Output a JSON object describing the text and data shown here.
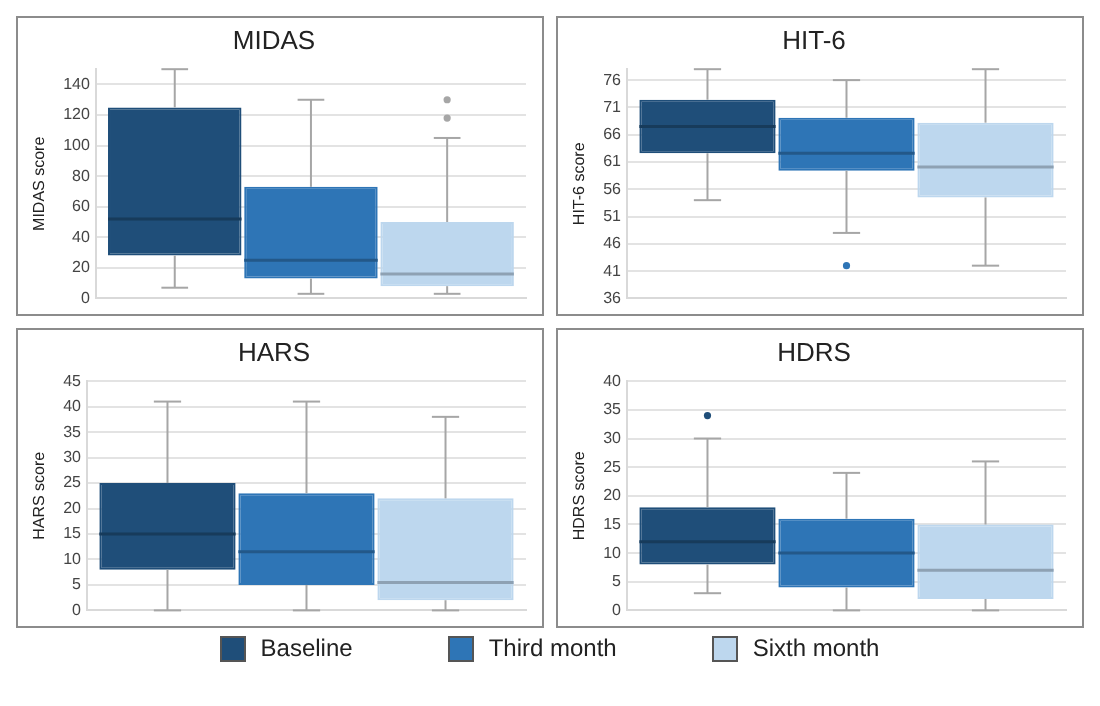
{
  "chart_data": [
    {
      "type": "box",
      "title": "MIDAS",
      "ylabel": "MIDAS score",
      "categories": [
        null
      ],
      "ylim": [
        0,
        150
      ],
      "yticks": [
        0,
        20,
        40,
        60,
        80,
        100,
        120,
        140
      ],
      "grid": "y",
      "tick_labels": "y",
      "series": [
        {
          "color": "#1f4e79",
          "boxes": [
            {
              "low": 7,
              "q1": 28,
              "median": 52,
              "q3": 125,
              "high": 150
            }
          ]
        },
        {
          "color": "#2e75b6",
          "boxes": [
            {
              "low": 3,
              "q1": 13,
              "median": 25,
              "q3": 73,
              "high": 130
            }
          ]
        },
        {
          "color": "#bdd7ee",
          "boxes": [
            {
              "low": 3,
              "q1": 8,
              "median": 16,
              "q3": 50,
              "high": 105,
              "outliers": [
                118,
                130
              ]
            }
          ]
        }
      ]
    },
    {
      "type": "box",
      "title": "HIT-6",
      "ylabel": "HIT-6 score",
      "categories": [
        null
      ],
      "ylim": [
        36,
        78
      ],
      "yticks": [
        36,
        41,
        46,
        51,
        56,
        61,
        66,
        71,
        76
      ],
      "grid": "y",
      "tick_labels": "y",
      "series": [
        {
          "color": "#1f4e79",
          "boxes": [
            {
              "low": 54,
              "q1": 62.6,
              "median": 67.5,
              "q3": 72.4,
              "high": 78
            }
          ]
        },
        {
          "color": "#2e75b6",
          "boxes": [
            {
              "low": 48,
              "q1": 59.4,
              "median": 62.6,
              "q3": 69.1,
              "high": 76,
              "outliers": [
                42
              ]
            }
          ]
        },
        {
          "color": "#bdd7ee",
          "boxes": [
            {
              "low": 42,
              "q1": 54.5,
              "median": 60.1,
              "q3": 68.2,
              "high": 78
            }
          ]
        }
      ]
    },
    {
      "type": "box",
      "title": "HARS",
      "ylabel": "HARS score",
      "categories": [
        null
      ],
      "ylim": [
        0,
        45
      ],
      "yticks": [
        0,
        5,
        10,
        15,
        20,
        25,
        30,
        35,
        40,
        45
      ],
      "grid": "y",
      "tick_labels": "y",
      "series": [
        {
          "color": "#1f4e79",
          "boxes": [
            {
              "low": 0,
              "q1": 8,
              "median": 15,
              "q3": 25,
              "high": 41
            }
          ]
        },
        {
          "color": "#2e75b6",
          "boxes": [
            {
              "low": 0,
              "q1": 5,
              "median": 11.5,
              "q3": 23,
              "high": 41
            }
          ]
        },
        {
          "color": "#bdd7ee",
          "boxes": [
            {
              "low": 0,
              "q1": 2,
              "median": 5.5,
              "q3": 22,
              "high": 38
            }
          ]
        }
      ]
    },
    {
      "type": "box",
      "title": "HDRS",
      "ylabel": "HDRS score",
      "categories": [
        null
      ],
      "ylim": [
        0,
        40
      ],
      "yticks": [
        0,
        5,
        10,
        15,
        20,
        25,
        30,
        35,
        40
      ],
      "grid": "y",
      "tick_labels": "y",
      "legend": "bottom",
      "series": [
        {
          "name": "Baseline",
          "color": "#1f4e79",
          "boxes": [
            {
              "low": 3,
              "q1": 8,
              "median": 12,
              "q3": 18,
              "high": 30,
              "outliers": [
                34
              ]
            }
          ]
        },
        {
          "name": "Third month",
          "color": "#2e75b6",
          "boxes": [
            {
              "low": 0,
              "q1": 4,
              "median": 10,
              "q3": 16,
              "high": 24
            }
          ]
        },
        {
          "name": "Sixth month",
          "color": "#bdd7ee",
          "boxes": [
            {
              "low": 0,
              "q1": 2,
              "median": 7,
              "q3": 15,
              "high": 26
            }
          ]
        }
      ]
    }
  ]
}
